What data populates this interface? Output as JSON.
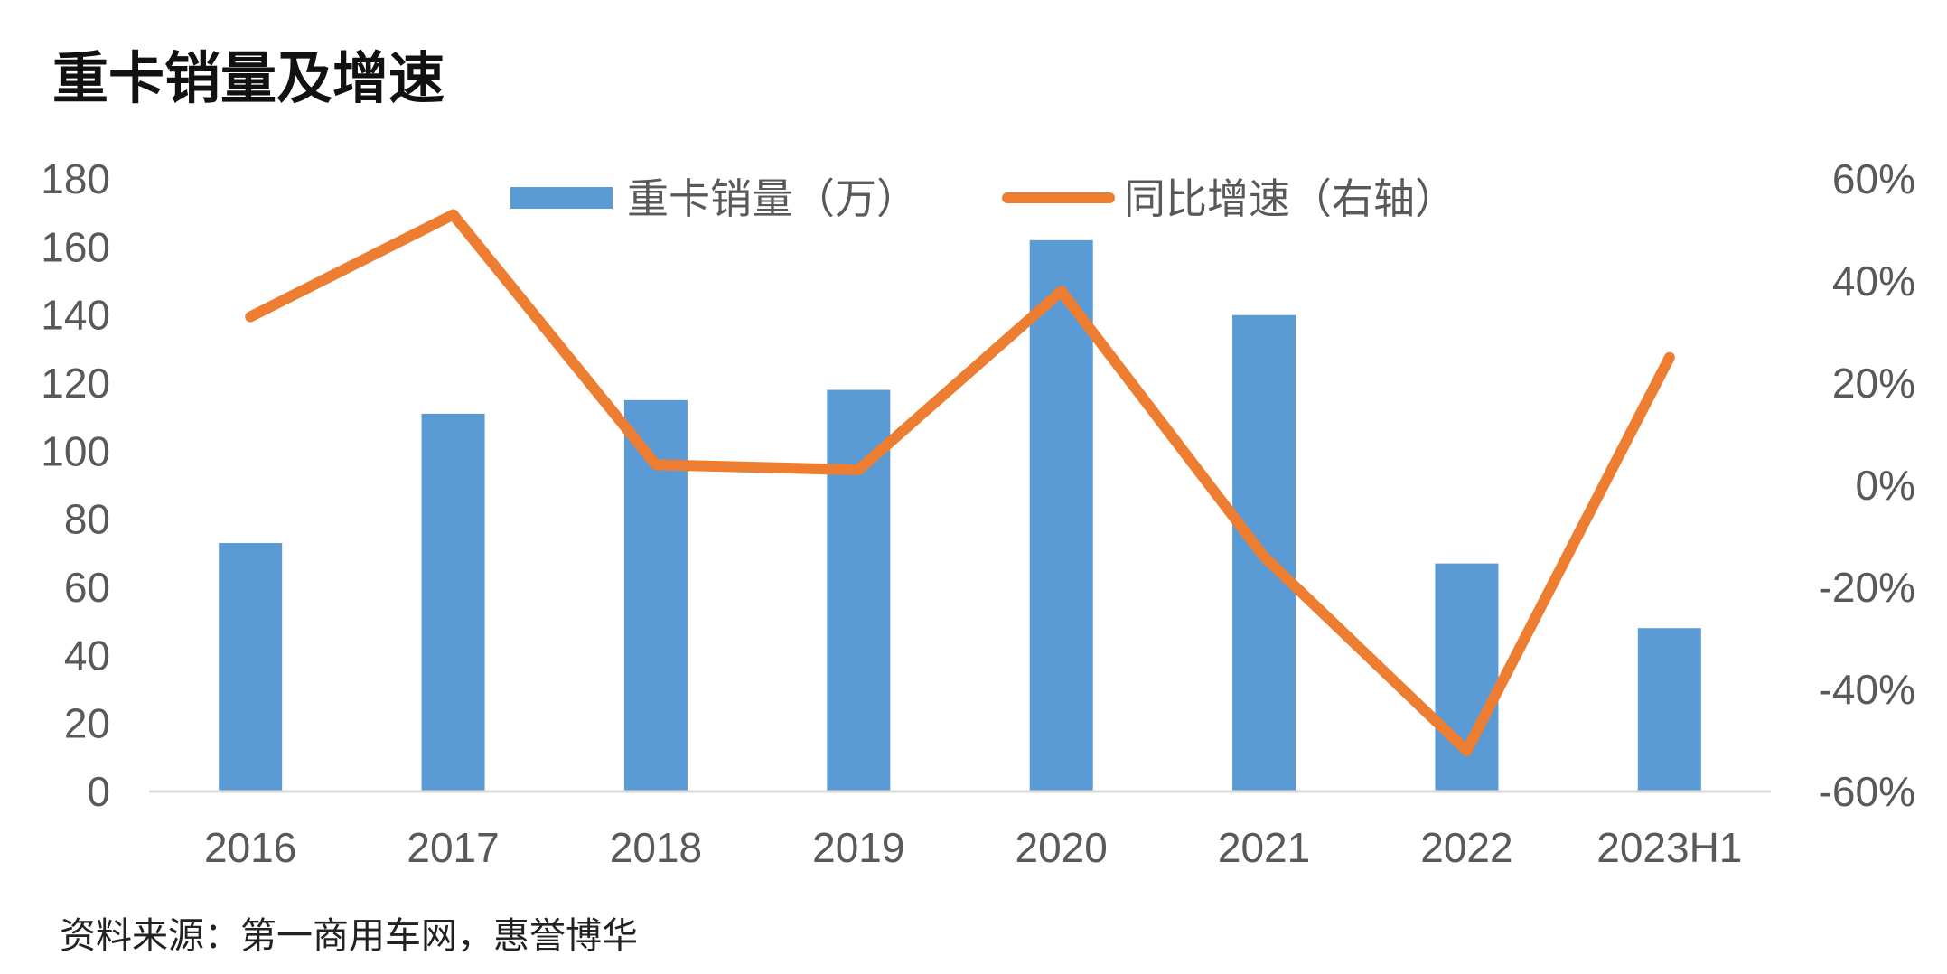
{
  "title": "重卡销量及增速",
  "source": "资料来源：第一商用车网，惠誉博华",
  "colors": {
    "bar": "#5B9BD5",
    "line": "#ED7D31",
    "axis": "#D9D9D9",
    "text": "#595959"
  },
  "chart_data": {
    "type": "bar+line",
    "categories": [
      "2016",
      "2017",
      "2018",
      "2019",
      "2020",
      "2021",
      "2022",
      "2023H1"
    ],
    "series": [
      {
        "name": "重卡销量（万）",
        "type": "bar",
        "axis": "left",
        "values": [
          73,
          111,
          115,
          118,
          162,
          140,
          67,
          48
        ]
      },
      {
        "name": "同比增速（右轴）",
        "type": "line",
        "axis": "right",
        "values": [
          0.33,
          0.53,
          0.04,
          0.03,
          0.38,
          -0.14,
          -0.52,
          0.25
        ]
      }
    ],
    "left_axis": {
      "ylim": [
        0,
        180
      ],
      "ticks": [
        "0",
        "20",
        "40",
        "60",
        "80",
        "100",
        "120",
        "140",
        "160",
        "180"
      ]
    },
    "right_axis": {
      "ylim": [
        -0.6,
        0.6
      ],
      "ticks": [
        "-60%",
        "-40%",
        "-20%",
        "0%",
        "20%",
        "40%",
        "60%"
      ]
    },
    "legend_position": "top",
    "grid": false
  }
}
